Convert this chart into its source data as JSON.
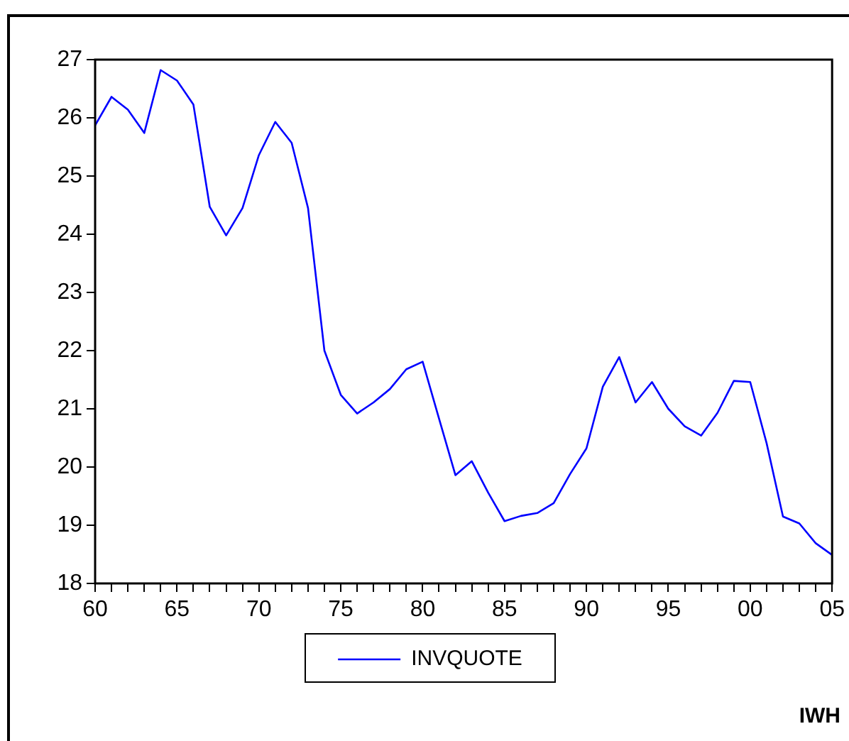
{
  "chart_data": {
    "type": "line",
    "x": [
      1960,
      1961,
      1962,
      1963,
      1964,
      1965,
      1966,
      1967,
      1968,
      1969,
      1970,
      1971,
      1972,
      1973,
      1974,
      1975,
      1976,
      1977,
      1978,
      1979,
      1980,
      1981,
      1982,
      1983,
      1984,
      1985,
      1986,
      1987,
      1988,
      1989,
      1990,
      1991,
      1992,
      1993,
      1994,
      1995,
      1996,
      1997,
      1998,
      1999,
      2000,
      2001,
      2002,
      2003,
      2004,
      2005
    ],
    "series": [
      {
        "name": "INVQUOTE",
        "color": "#0000ff",
        "values": [
          25.87,
          26.36,
          26.14,
          25.74,
          26.82,
          26.64,
          26.23,
          24.47,
          23.98,
          24.45,
          25.36,
          25.93,
          25.57,
          24.45,
          22.0,
          21.24,
          20.92,
          21.11,
          21.34,
          21.68,
          21.81,
          20.83,
          19.86,
          20.1,
          19.56,
          19.07,
          19.16,
          19.21,
          19.38,
          19.88,
          20.32,
          21.38,
          21.89,
          21.11,
          21.46,
          21.0,
          20.7,
          20.54,
          20.93,
          21.48,
          21.46,
          20.41,
          19.15,
          19.03,
          18.69,
          18.49
        ]
      }
    ],
    "xlim": [
      1960,
      2005
    ],
    "xticks": [
      {
        "value": 1960,
        "label": "60"
      },
      {
        "value": 1961,
        "label": null
      },
      {
        "value": 1962,
        "label": null
      },
      {
        "value": 1963,
        "label": null
      },
      {
        "value": 1964,
        "label": null
      },
      {
        "value": 1965,
        "label": "65"
      },
      {
        "value": 1966,
        "label": null
      },
      {
        "value": 1967,
        "label": null
      },
      {
        "value": 1968,
        "label": null
      },
      {
        "value": 1969,
        "label": null
      },
      {
        "value": 1970,
        "label": "70"
      },
      {
        "value": 1971,
        "label": null
      },
      {
        "value": 1972,
        "label": null
      },
      {
        "value": 1973,
        "label": null
      },
      {
        "value": 1974,
        "label": null
      },
      {
        "value": 1975,
        "label": "75"
      },
      {
        "value": 1976,
        "label": null
      },
      {
        "value": 1977,
        "label": null
      },
      {
        "value": 1978,
        "label": null
      },
      {
        "value": 1979,
        "label": null
      },
      {
        "value": 1980,
        "label": "80"
      },
      {
        "value": 1981,
        "label": null
      },
      {
        "value": 1982,
        "label": null
      },
      {
        "value": 1983,
        "label": null
      },
      {
        "value": 1984,
        "label": null
      },
      {
        "value": 1985,
        "label": "85"
      },
      {
        "value": 1986,
        "label": null
      },
      {
        "value": 1987,
        "label": null
      },
      {
        "value": 1988,
        "label": null
      },
      {
        "value": 1989,
        "label": null
      },
      {
        "value": 1990,
        "label": "90"
      },
      {
        "value": 1991,
        "label": null
      },
      {
        "value": 1992,
        "label": null
      },
      {
        "value": 1993,
        "label": null
      },
      {
        "value": 1994,
        "label": null
      },
      {
        "value": 1995,
        "label": "95"
      },
      {
        "value": 1996,
        "label": null
      },
      {
        "value": 1997,
        "label": null
      },
      {
        "value": 1998,
        "label": null
      },
      {
        "value": 1999,
        "label": null
      },
      {
        "value": 2000,
        "label": "00"
      },
      {
        "value": 2001,
        "label": null
      },
      {
        "value": 2002,
        "label": null
      },
      {
        "value": 2003,
        "label": null
      },
      {
        "value": 2004,
        "label": null
      },
      {
        "value": 2005,
        "label": "05"
      }
    ],
    "ylim": [
      18,
      27
    ],
    "yticks": [
      18,
      19,
      20,
      21,
      22,
      23,
      24,
      25,
      26,
      27
    ],
    "grid": false,
    "legend": "bottom",
    "marker": "none",
    "line_style": "solid",
    "annotations": [
      "IWH"
    ]
  }
}
